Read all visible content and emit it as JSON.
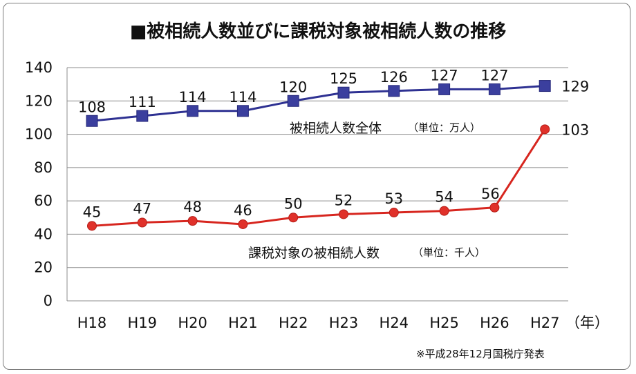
{
  "chart_data": {
    "type": "line",
    "title": "■被相続人数並びに課税対象被相続人数の推移",
    "categories": [
      "H18",
      "H19",
      "H20",
      "H21",
      "H22",
      "H23",
      "H24",
      "H25",
      "H26",
      "H27"
    ],
    "x_unit": "（年）",
    "y_ticks": [
      0,
      20,
      40,
      60,
      80,
      100,
      120,
      140
    ],
    "ylim": [
      0,
      140
    ],
    "grid": true,
    "series": [
      {
        "name": "被相続人数全体",
        "unit": "（単位：万人）",
        "color": "#2e3192",
        "marker": "square",
        "values": [
          108,
          111,
          114,
          114,
          120,
          125,
          126,
          127,
          127,
          129
        ],
        "labels": [
          "108",
          "111",
          "114",
          "114",
          "120",
          "125",
          "126",
          "127",
          "127",
          "129"
        ]
      },
      {
        "name": "課税対象の被相続人数",
        "unit": "（単位：千人）",
        "color": "#d7261f",
        "marker": "circle",
        "values": [
          45,
          47,
          48,
          46,
          50,
          52,
          53,
          54,
          56,
          103
        ],
        "labels": [
          "45",
          "47",
          "48",
          "46",
          "50",
          "52",
          "53",
          "54",
          "56",
          "103"
        ]
      }
    ],
    "source": "※平成28年12月国税庁発表"
  }
}
